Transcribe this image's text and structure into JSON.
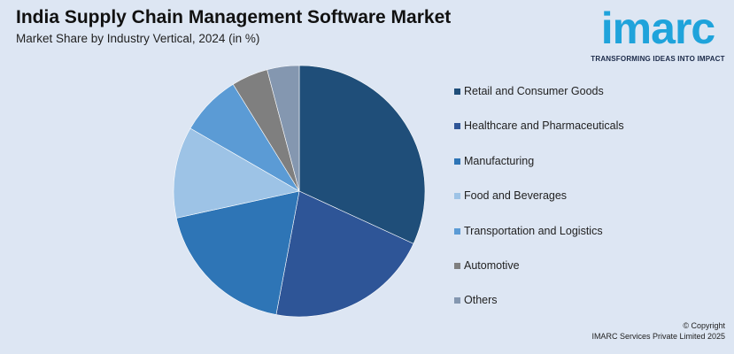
{
  "header": {
    "title": "India Supply Chain Management Software Market",
    "subtitle": "Market Share by Industry Vertical, 2024 (in %)"
  },
  "logo": {
    "wordmark": "imarc",
    "tagline": "TRANSFORMING IDEAS INTO IMPACT"
  },
  "footer": {
    "copyright_line1": "© Copyright",
    "copyright_line2": "IMARC Services Private Limited 2025"
  },
  "chart_data": {
    "type": "pie",
    "title": "India Supply Chain Management Software Market",
    "subtitle": "Market Share by Industry Vertical, 2024 (in %)",
    "legend_position": "right",
    "categories": [
      "Retail and Consumer Goods",
      "Healthcare and Pharmaceuticals",
      "Manufacturing",
      "Food and Beverages",
      "Transportation and Logistics",
      "Automotive",
      "Others"
    ],
    "values": [
      32.5,
      21.5,
      19.0,
      12.0,
      8.0,
      4.8,
      4.2
    ],
    "colors": [
      "#1f4e79",
      "#2e5597",
      "#2e75b6",
      "#9dc3e6",
      "#5b9bd5",
      "#7f7f7f",
      "#8497b0"
    ]
  }
}
